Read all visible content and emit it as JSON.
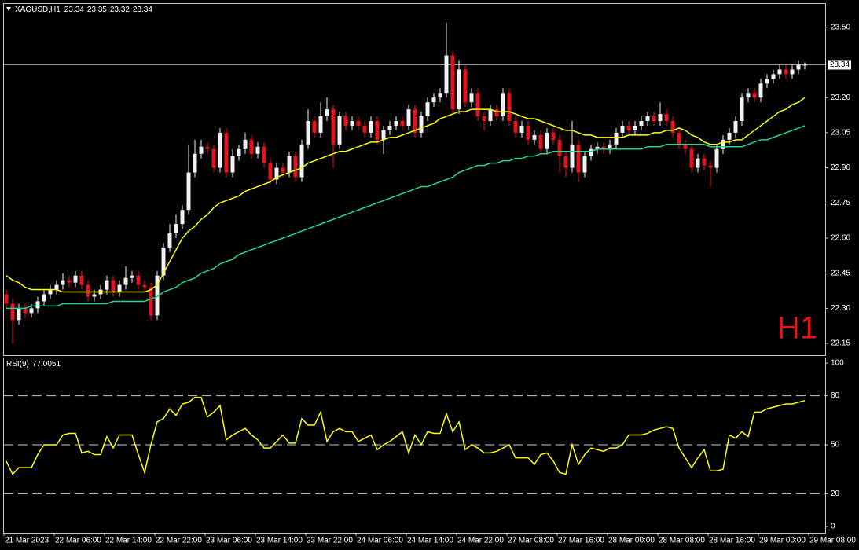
{
  "chart_data": [
    {
      "type": "candlestick",
      "title": "XAGUSD,H1",
      "ohlc_legend": [
        23.34,
        23.35,
        23.32,
        23.34
      ],
      "annotation": "H1",
      "annotation_color": "#e3141e",
      "bull_color": "#f2f2f2",
      "bear_color": "#e3141e",
      "current_price": 23.34,
      "ylim": [
        22.1,
        23.6
      ],
      "yticks": [
        22.15,
        {
          "value": 22.3,
          "label": "22.30"
        },
        22.45,
        {
          "value": 22.6,
          "label": "22.60"
        },
        22.75,
        {
          "value": 22.9,
          "label": "22.90"
        },
        23.05,
        {
          "value": 23.2,
          "label": "23.20"
        },
        {
          "value": 23.5,
          "label": "23.50"
        }
      ],
      "time_labels": [
        "21 Mar 2023",
        "22 Mar 06:00",
        "22 Mar 14:00",
        "22 Mar 22:00",
        "23 Mar 06:00",
        "23 Mar 14:00",
        "23 Mar 22:00",
        "24 Mar 06:00",
        "24 Mar 14:00",
        "24 Mar 22:00",
        "27 Mar 08:00",
        "27 Mar 16:00",
        "28 Mar 00:00",
        "28 Mar 08:00",
        "28 Mar 16:00",
        "29 Mar 00:00",
        "29 Mar 08:00"
      ],
      "candles": [
        [
          22.36,
          22.38,
          22.3,
          22.32
        ],
        [
          22.32,
          22.34,
          22.15,
          22.25
        ],
        [
          22.25,
          22.32,
          22.23,
          22.3
        ],
        [
          22.3,
          22.32,
          22.26,
          22.28
        ],
        [
          22.28,
          22.32,
          22.26,
          22.3
        ],
        [
          22.3,
          22.35,
          22.28,
          22.33
        ],
        [
          22.33,
          22.38,
          22.31,
          22.36
        ],
        [
          22.36,
          22.4,
          22.34,
          22.38
        ],
        [
          22.38,
          22.42,
          22.36,
          22.4
        ],
        [
          22.4,
          22.45,
          22.38,
          22.42
        ],
        [
          22.42,
          22.44,
          22.39,
          22.41
        ],
        [
          22.41,
          22.46,
          22.39,
          22.44
        ],
        [
          22.44,
          22.46,
          22.38,
          22.4
        ],
        [
          22.4,
          22.42,
          22.33,
          22.35
        ],
        [
          22.35,
          22.38,
          22.33,
          22.36
        ],
        [
          22.36,
          22.4,
          22.34,
          22.38
        ],
        [
          22.38,
          22.44,
          22.36,
          22.42
        ],
        [
          22.42,
          22.44,
          22.35,
          22.37
        ],
        [
          22.37,
          22.42,
          22.35,
          22.4
        ],
        [
          22.4,
          22.48,
          22.38,
          22.43
        ],
        [
          22.43,
          22.46,
          22.41,
          22.44
        ],
        [
          22.44,
          22.46,
          22.38,
          22.4
        ],
        [
          22.4,
          22.42,
          22.37,
          22.39
        ],
        [
          22.39,
          22.41,
          22.25,
          22.27
        ],
        [
          22.27,
          22.46,
          22.25,
          22.44
        ],
        [
          22.44,
          22.58,
          22.42,
          22.56
        ],
        [
          22.56,
          22.66,
          22.54,
          22.62
        ],
        [
          22.62,
          22.7,
          22.6,
          22.66
        ],
        [
          22.66,
          22.74,
          22.64,
          22.72
        ],
        [
          22.72,
          23.0,
          22.7,
          22.88
        ],
        [
          22.88,
          23.02,
          22.86,
          22.96
        ],
        [
          22.96,
          23.02,
          22.94,
          22.99
        ],
        [
          22.99,
          23.01,
          22.96,
          22.98
        ],
        [
          22.98,
          23.0,
          22.88,
          22.9
        ],
        [
          22.9,
          23.07,
          22.88,
          23.05
        ],
        [
          23.05,
          23.07,
          22.86,
          22.88
        ],
        [
          22.88,
          22.98,
          22.86,
          22.95
        ],
        [
          22.95,
          23.0,
          22.93,
          22.98
        ],
        [
          22.98,
          23.05,
          22.96,
          23.02
        ],
        [
          23.02,
          23.04,
          22.94,
          22.96
        ],
        [
          22.96,
          23.01,
          22.94,
          22.99
        ],
        [
          22.99,
          23.01,
          22.9,
          22.92
        ],
        [
          22.92,
          22.94,
          22.83,
          22.85
        ],
        [
          22.85,
          22.92,
          22.83,
          22.9
        ],
        [
          22.9,
          22.92,
          22.86,
          22.88
        ],
        [
          22.88,
          22.97,
          22.86,
          22.95
        ],
        [
          22.95,
          22.97,
          22.84,
          22.86
        ],
        [
          22.86,
          23.02,
          22.84,
          23.0
        ],
        [
          23.0,
          23.15,
          22.98,
          23.1
        ],
        [
          23.1,
          23.12,
          23.03,
          23.05
        ],
        [
          23.05,
          23.18,
          23.03,
          23.12
        ],
        [
          23.12,
          23.2,
          23.1,
          23.15
        ],
        [
          23.15,
          23.17,
          22.9,
          23.0
        ],
        [
          23.0,
          23.14,
          22.98,
          23.12
        ],
        [
          23.12,
          23.14,
          23.06,
          23.08
        ],
        [
          23.08,
          23.12,
          23.06,
          23.1
        ],
        [
          23.1,
          23.12,
          23.06,
          23.08
        ],
        [
          23.08,
          23.1,
          23.03,
          23.05
        ],
        [
          23.05,
          23.12,
          23.03,
          23.1
        ],
        [
          23.1,
          23.12,
          23.0,
          23.02
        ],
        [
          23.02,
          23.08,
          22.96,
          23.06
        ],
        [
          23.06,
          23.1,
          23.04,
          23.08
        ],
        [
          23.08,
          23.12,
          23.06,
          23.1
        ],
        [
          23.1,
          23.12,
          23.06,
          23.08
        ],
        [
          23.08,
          23.17,
          23.06,
          23.15
        ],
        [
          23.15,
          23.17,
          23.03,
          23.05
        ],
        [
          23.05,
          23.14,
          23.03,
          23.12
        ],
        [
          23.12,
          23.2,
          23.1,
          23.18
        ],
        [
          23.18,
          23.22,
          23.16,
          23.2
        ],
        [
          23.2,
          23.24,
          23.18,
          23.22
        ],
        [
          23.22,
          23.52,
          23.2,
          23.38
        ],
        [
          23.38,
          23.4,
          23.13,
          23.15
        ],
        [
          23.15,
          23.36,
          23.13,
          23.32
        ],
        [
          23.32,
          23.34,
          23.16,
          23.18
        ],
        [
          23.18,
          23.24,
          23.16,
          23.22
        ],
        [
          23.22,
          23.24,
          23.1,
          23.12
        ],
        [
          23.12,
          23.14,
          23.06,
          23.1
        ],
        [
          23.1,
          23.17,
          23.08,
          23.15
        ],
        [
          23.15,
          23.17,
          23.1,
          23.12
        ],
        [
          23.12,
          23.24,
          23.1,
          23.22
        ],
        [
          23.22,
          23.24,
          23.08,
          23.1
        ],
        [
          23.1,
          23.12,
          23.03,
          23.05
        ],
        [
          23.05,
          23.1,
          23.03,
          23.08
        ],
        [
          23.08,
          23.1,
          23.0,
          23.02
        ],
        [
          23.02,
          23.06,
          23.0,
          23.04
        ],
        [
          23.04,
          23.06,
          22.96,
          22.98
        ],
        [
          22.98,
          23.07,
          22.96,
          23.05
        ],
        [
          23.05,
          23.07,
          23.0,
          23.02
        ],
        [
          23.02,
          23.04,
          22.88,
          22.95
        ],
        [
          22.95,
          22.97,
          22.86,
          22.9
        ],
        [
          22.9,
          23.1,
          22.88,
          23.0
        ],
        [
          23.0,
          23.02,
          22.84,
          22.88
        ],
        [
          22.88,
          22.97,
          22.86,
          22.95
        ],
        [
          22.95,
          23.0,
          22.93,
          22.98
        ],
        [
          22.98,
          23.01,
          22.96,
          22.99
        ],
        [
          22.99,
          23.01,
          22.96,
          22.98
        ],
        [
          22.98,
          23.02,
          22.96,
          23.0
        ],
        [
          23.0,
          23.07,
          22.98,
          23.05
        ],
        [
          23.05,
          23.1,
          23.03,
          23.08
        ],
        [
          23.08,
          23.1,
          23.04,
          23.06
        ],
        [
          23.06,
          23.1,
          23.04,
          23.08
        ],
        [
          23.08,
          23.12,
          23.06,
          23.1
        ],
        [
          23.1,
          23.14,
          23.08,
          23.12
        ],
        [
          23.12,
          23.14,
          23.08,
          23.1
        ],
        [
          23.1,
          23.18,
          23.08,
          23.13
        ],
        [
          23.13,
          23.15,
          23.08,
          23.1
        ],
        [
          23.1,
          23.12,
          23.03,
          23.05
        ],
        [
          23.05,
          23.07,
          22.98,
          23.0
        ],
        [
          23.0,
          23.02,
          22.96,
          22.98
        ],
        [
          22.98,
          23.0,
          22.88,
          22.9
        ],
        [
          22.9,
          22.96,
          22.88,
          22.94
        ],
        [
          22.94,
          22.96,
          22.89,
          22.91
        ],
        [
          22.91,
          22.93,
          22.82,
          22.9
        ],
        [
          22.9,
          23.0,
          22.88,
          22.98
        ],
        [
          22.98,
          23.04,
          22.96,
          23.02
        ],
        [
          23.02,
          23.07,
          23.0,
          23.05
        ],
        [
          23.05,
          23.12,
          23.03,
          23.1
        ],
        [
          23.1,
          23.22,
          23.08,
          23.2
        ],
        [
          23.2,
          23.24,
          23.18,
          23.22
        ],
        [
          23.22,
          23.24,
          23.18,
          23.2
        ],
        [
          23.2,
          23.28,
          23.18,
          23.26
        ],
        [
          23.26,
          23.3,
          23.24,
          23.28
        ],
        [
          23.28,
          23.32,
          23.26,
          23.3
        ],
        [
          23.3,
          23.34,
          23.28,
          23.32
        ],
        [
          23.32,
          23.34,
          23.28,
          23.3
        ],
        [
          23.3,
          23.34,
          23.28,
          23.32
        ],
        [
          23.32,
          23.36,
          23.3,
          23.34
        ],
        [
          23.34,
          23.35,
          23.32,
          23.34
        ]
      ],
      "overlays": [
        {
          "color": "#ffff00",
          "values": [
            22.44,
            22.42,
            22.41,
            22.39,
            22.38,
            22.38,
            22.38,
            22.38,
            22.38,
            22.37,
            22.37,
            22.37,
            22.37,
            22.37,
            22.37,
            22.37,
            22.37,
            22.37,
            22.37,
            22.37,
            22.37,
            22.37,
            22.37,
            22.38,
            22.4,
            22.45,
            22.5,
            22.55,
            22.6,
            22.63,
            22.65,
            22.68,
            22.7,
            22.73,
            22.75,
            22.76,
            22.77,
            22.78,
            22.8,
            22.81,
            22.82,
            22.83,
            22.84,
            22.86,
            22.87,
            22.88,
            22.89,
            22.9,
            22.92,
            22.93,
            22.94,
            22.95,
            22.96,
            22.97,
            22.97,
            22.98,
            22.99,
            23.0,
            23.01,
            23.01,
            23.02,
            23.03,
            23.03,
            23.04,
            23.05,
            23.06,
            23.07,
            23.08,
            23.09,
            23.11,
            23.12,
            23.13,
            23.14,
            23.14,
            23.15,
            23.15,
            23.15,
            23.15,
            23.14,
            23.14,
            23.14,
            23.13,
            23.12,
            23.11,
            23.11,
            23.1,
            23.09,
            23.08,
            23.07,
            23.06,
            23.06,
            23.05,
            23.04,
            23.04,
            23.03,
            23.03,
            23.03,
            23.03,
            23.03,
            23.04,
            23.04,
            23.04,
            23.04,
            23.05,
            23.05,
            23.06,
            23.06,
            23.07,
            23.06,
            23.04,
            23.03,
            23.01,
            23.0,
            23.0,
            23.01,
            23.01,
            23.02,
            23.02,
            23.04,
            23.06,
            23.08,
            23.1,
            23.12,
            23.14,
            23.15,
            23.17,
            23.18,
            23.2
          ]
        },
        {
          "color": "#20d890",
          "values": [
            22.3,
            22.3,
            22.3,
            22.3,
            22.31,
            22.31,
            22.31,
            22.31,
            22.31,
            22.32,
            22.32,
            22.32,
            22.32,
            22.32,
            22.32,
            22.32,
            22.32,
            22.33,
            22.33,
            22.33,
            22.33,
            22.33,
            22.33,
            22.34,
            22.35,
            22.37,
            22.38,
            22.39,
            22.41,
            22.42,
            22.43,
            22.45,
            22.46,
            22.47,
            22.49,
            22.5,
            22.51,
            22.53,
            22.54,
            22.55,
            22.56,
            22.57,
            22.58,
            22.59,
            22.6,
            22.61,
            22.62,
            22.63,
            22.64,
            22.65,
            22.66,
            22.67,
            22.68,
            22.69,
            22.7,
            22.71,
            22.72,
            22.73,
            22.74,
            22.75,
            22.76,
            22.77,
            22.78,
            22.79,
            22.8,
            22.81,
            22.82,
            22.82,
            22.83,
            22.84,
            22.85,
            22.86,
            22.88,
            22.89,
            22.9,
            22.91,
            22.91,
            22.92,
            22.92,
            22.93,
            22.93,
            22.94,
            22.94,
            22.95,
            22.95,
            22.96,
            22.96,
            22.97,
            22.97,
            22.97,
            22.97,
            22.97,
            22.97,
            22.97,
            22.98,
            22.98,
            22.98,
            22.98,
            22.98,
            22.98,
            22.98,
            22.98,
            22.99,
            22.99,
            22.99,
            23.0,
            23.0,
            23.0,
            23.0,
            23.0,
            23.0,
            23.0,
            22.99,
            22.99,
            22.99,
            22.99,
            22.99,
            22.99,
            23.0,
            23.01,
            23.02,
            23.02,
            23.03,
            23.04,
            23.05,
            23.06,
            23.07,
            23.08
          ]
        }
      ]
    },
    {
      "type": "line",
      "title": "RSI(9)",
      "color": "#ffff00",
      "ylim": [
        0,
        100
      ],
      "yticks": [
        0,
        20,
        50,
        80,
        100
      ],
      "levels": [
        20,
        50,
        80
      ],
      "values": [
        40,
        32,
        36,
        36,
        36,
        44,
        50,
        50,
        50,
        56,
        57,
        57,
        45,
        46,
        44,
        44,
        55,
        48,
        56,
        56,
        56,
        44,
        33,
        50,
        64,
        66,
        72,
        68,
        75,
        76,
        79,
        79,
        67,
        70,
        74,
        53,
        56,
        58,
        60,
        56,
        53,
        48,
        48,
        52,
        56,
        51,
        51,
        66,
        62,
        62,
        70,
        52,
        58,
        60,
        58,
        58,
        52,
        54,
        56,
        47,
        50,
        52,
        55,
        58,
        45,
        56,
        50,
        58,
        57,
        57,
        69,
        58,
        64,
        47,
        50,
        48,
        45,
        45,
        46,
        48,
        50,
        42,
        42,
        42,
        38,
        44,
        45,
        40,
        33,
        32,
        50,
        38,
        44,
        48,
        47,
        46,
        48,
        48,
        50,
        56,
        56,
        56,
        57,
        59,
        60,
        61,
        60,
        48,
        42,
        36,
        42,
        47,
        34,
        34,
        35,
        56,
        54,
        58,
        55,
        70,
        70,
        72,
        73,
        74,
        75,
        75,
        76,
        77.0051
      ]
    }
  ]
}
